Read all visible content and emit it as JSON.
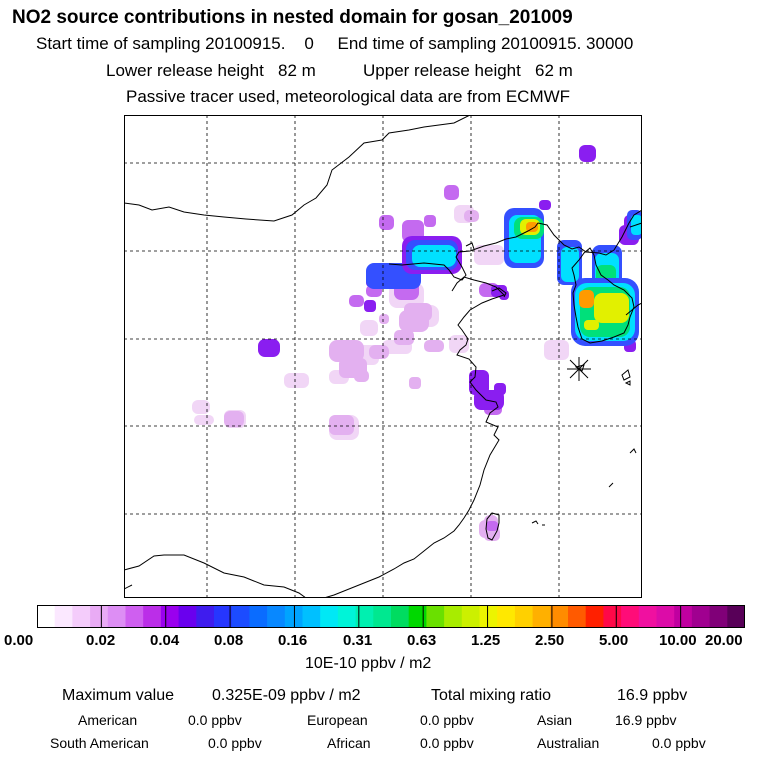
{
  "header": {
    "title": "NO2 source contributions in nested domain for gosan_201009",
    "start_label": "Start time of sampling 20100915.",
    "start_value": "0",
    "end_label": "End time of sampling 20100915. 30000",
    "lower_label": "Lower release height",
    "lower_value": "82 m",
    "upper_label": "Upper release height",
    "upper_value": "62 m",
    "note": "Passive tracer used, meteorological data are from ECMWF"
  },
  "colorbar": {
    "units": "10E-10 ppbv / m2",
    "tick_labels": [
      "0.00",
      "0.02",
      "0.04",
      "0.08",
      "0.16",
      "0.31",
      "0.63",
      "1.25",
      "2.50",
      "5.00",
      "10.00",
      "20.00"
    ],
    "colors": [
      "#ffffff",
      "#fbe8ff",
      "#f4ccfb",
      "#e9abf5",
      "#dd8ef4",
      "#cf5ff0",
      "#bb2ee8",
      "#9a00ee",
      "#6a00ee",
      "#3f1cee",
      "#2636ff",
      "#1c4cff",
      "#0a6cff",
      "#0888ff",
      "#00a4ff",
      "#00c0ff",
      "#00e8f5",
      "#00f4d8",
      "#00f0b0",
      "#00e890",
      "#00dc60",
      "#00d800",
      "#6ae000",
      "#a8ec00",
      "#ccf000",
      "#ecf400",
      "#ffe800",
      "#ffd000",
      "#ffb000",
      "#ff8c00",
      "#ff5a00",
      "#ff2000",
      "#ff0848",
      "#ff0c78",
      "#f010a0",
      "#dc0ca8",
      "#c000a0",
      "#a00090",
      "#800078",
      "#580058"
    ]
  },
  "summary": {
    "max_label": "Maximum value",
    "max_value": "0.325E-09 ppbv / m2",
    "total_label": "Total mixing ratio",
    "total_value": "16.9 ppbv"
  },
  "regions": [
    {
      "name": "American",
      "value": "0.0 ppbv"
    },
    {
      "name": "European",
      "value": "0.0 ppbv"
    },
    {
      "name": "Asian",
      "value": "16.9 ppbv"
    },
    {
      "name": "South American",
      "value": "0.0 ppbv"
    },
    {
      "name": "African",
      "value": "0.0 ppbv"
    },
    {
      "name": "Australian",
      "value": "0.0 ppbv"
    }
  ],
  "map": {
    "receptor_marker": "asterisk-icon",
    "contribution_colors": {
      "faint": "#f1d6f6",
      "light": "#e3b0f0",
      "mid": "#c46af0",
      "strong": "#8a1ef0",
      "blue": "#3450ff",
      "cyan": "#00e0ff",
      "green": "#00e07a",
      "yellow": "#e2f000",
      "orange": "#ff9a00"
    }
  }
}
